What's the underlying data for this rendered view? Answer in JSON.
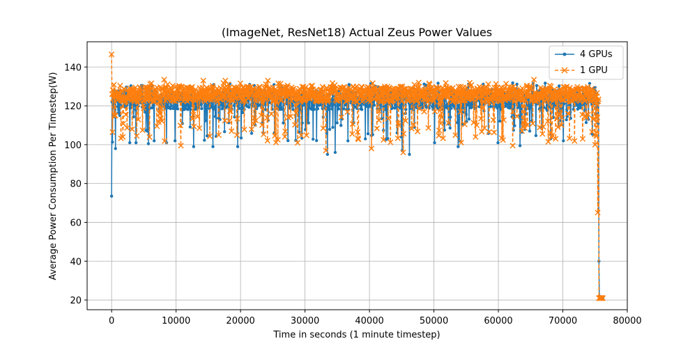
{
  "chart_data": {
    "type": "line",
    "title": "(ImageNet, ResNet18) Actual Zeus Power Values",
    "xlabel": "Time in seconds (1 minute timestep)",
    "ylabel": "Average Power Consumption Per Timestep(W)",
    "xlim": [
      -3800,
      80000
    ],
    "ylim": [
      15,
      153
    ],
    "xticks": [
      0,
      10000,
      20000,
      30000,
      40000,
      50000,
      60000,
      70000,
      80000
    ],
    "yticks": [
      20,
      40,
      60,
      80,
      100,
      120,
      140
    ],
    "grid": true,
    "legend_position": "top-right",
    "timestep_seconds": 60,
    "series": [
      {
        "name": "4 GPUs",
        "color": "#1f77b4",
        "style": "solid",
        "marker": "dot",
        "sample_x": [
          0,
          60,
          600,
          2820,
          3780,
          5700,
          6600,
          8520,
          9840,
          12720,
          15720,
          19560,
          23520,
          33480,
          34680,
          39360,
          45060,
          46200,
          50100,
          53760,
          59940,
          63360,
          65400,
          68100,
          70080,
          73980,
          75480,
          75600,
          75660,
          75720,
          75780,
          76200
        ],
        "sample_y": [
          73.5,
          122,
          98,
          101,
          101,
          100.5,
          102,
          101,
          102,
          99,
          99,
          99,
          106,
          95,
          96,
          103,
          97,
          95,
          101,
          99,
          101,
          99.5,
          131.5,
          103,
          102,
          113,
          111,
          40,
          22,
          21,
          21,
          21
        ],
        "baseline_range": [
          118,
          128
        ]
      },
      {
        "name": "1 GPU",
        "color": "#ff7f0e",
        "style": "dashed",
        "marker": "x",
        "sample_x": [
          0,
          60,
          600,
          1740,
          3900,
          8160,
          10740,
          14220,
          17640,
          24240,
          28860,
          33240,
          40320,
          45240,
          47640,
          56460,
          62220,
          65520,
          73080,
          75000,
          75420,
          75600,
          75660,
          75720,
          76200
        ],
        "sample_y": [
          146.5,
          126,
          115,
          104,
          104.5,
          133.5,
          99.5,
          133,
          133,
          133,
          101,
          97,
          98,
          96,
          132,
          104,
          99.5,
          133.5,
          103,
          100,
          65,
          21,
          21,
          21,
          21
        ],
        "baseline_range": [
          122,
          130
        ]
      }
    ]
  }
}
